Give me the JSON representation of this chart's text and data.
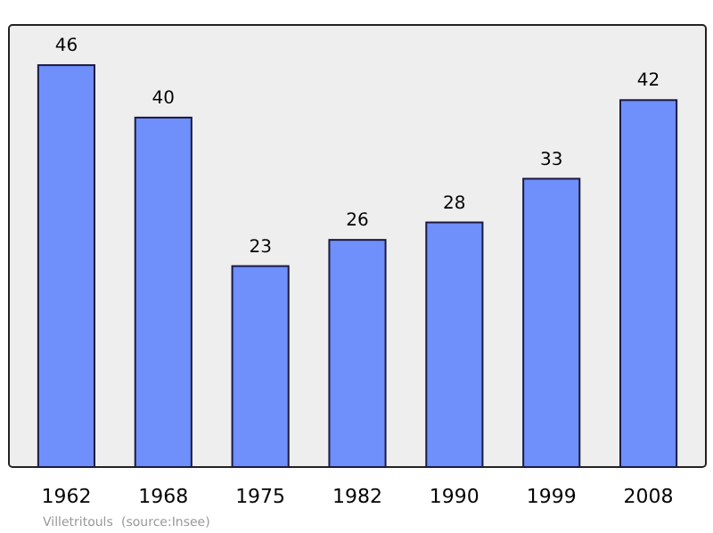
{
  "chart_data": {
    "type": "bar",
    "categories": [
      "1962",
      "1968",
      "1975",
      "1982",
      "1990",
      "1999",
      "2008"
    ],
    "values": [
      46,
      40,
      23,
      26,
      28,
      33,
      42
    ],
    "color": "#6f8ffb",
    "data_labels": true,
    "annotations": [
      "Villetritouls",
      "(source:Insee)"
    ]
  }
}
